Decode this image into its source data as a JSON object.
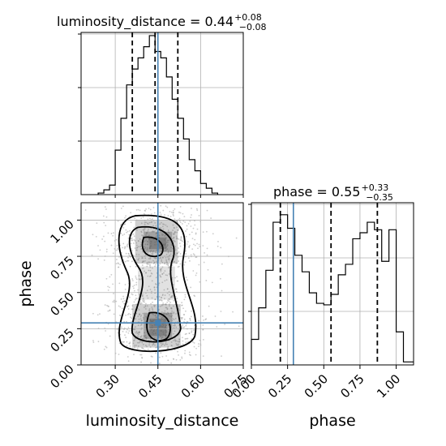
{
  "chart_data": {
    "type": "corner",
    "parameters": [
      "luminosity_distance",
      "phase"
    ],
    "truths": {
      "luminosity_distance": 0.45,
      "phase": 0.29
    },
    "panels": [
      {
        "name": "luminosity-distance-histogram",
        "type": "histogram",
        "title": {
          "main": "luminosity_distance = 0.44",
          "sup": "+0.08",
          "sub": "−0.08"
        },
        "xlim": [
          0.18,
          0.75
        ],
        "ylim": [
          0,
          1
        ],
        "quantile_lines": [
          0.36,
          0.44,
          0.52
        ],
        "truth": 0.45,
        "bin_edges": [
          0.24,
          0.26,
          0.28,
          0.3,
          0.32,
          0.34,
          0.36,
          0.38,
          0.4,
          0.42,
          0.44,
          0.46,
          0.48,
          0.5,
          0.52,
          0.54,
          0.56,
          0.58,
          0.6,
          0.62,
          0.64,
          0.66
        ],
        "counts": [
          0.01,
          0.03,
          0.06,
          0.28,
          0.48,
          0.69,
          0.79,
          0.86,
          0.93,
          1.0,
          0.9,
          0.86,
          0.74,
          0.6,
          0.48,
          0.35,
          0.22,
          0.15,
          0.07,
          0.04,
          0.01
        ]
      },
      {
        "name": "joint-density",
        "type": "contour",
        "xlim": [
          0.18,
          0.75
        ],
        "ylim": [
          0.0,
          1.12
        ],
        "xticks": [
          "0.30",
          "0.45",
          "0.60",
          "0.75"
        ],
        "xtick_values": [
          0.3,
          0.45,
          0.6,
          0.75
        ],
        "yticks": [
          "0.00",
          "0.25",
          "0.50",
          "0.75",
          "1.00"
        ],
        "ytick_values": [
          0.0,
          0.25,
          0.5,
          0.75,
          1.0
        ],
        "xlabel": "luminosity_distance",
        "ylabel": "phase",
        "truth": [
          0.45,
          0.29
        ]
      },
      {
        "name": "phase-histogram",
        "type": "histogram",
        "title": {
          "main": "phase = 0.55",
          "sup": "+0.33",
          "sub": "−0.35"
        },
        "xlim": [
          0.0,
          1.12
        ],
        "ylim": [
          0,
          1
        ],
        "xticks": [
          "0.00",
          "0.25",
          "0.50",
          "0.75",
          "1.00"
        ],
        "xtick_values": [
          0.0,
          0.25,
          0.5,
          0.75,
          1.0
        ],
        "xlabel": "phase",
        "quantile_lines": [
          0.2,
          0.55,
          0.87
        ],
        "truth": 0.29,
        "bin_edges": [
          0.0,
          0.05,
          0.1,
          0.15,
          0.2,
          0.25,
          0.3,
          0.35,
          0.4,
          0.45,
          0.5,
          0.55,
          0.6,
          0.65,
          0.7,
          0.75,
          0.8,
          0.85,
          0.9,
          0.95,
          1.0,
          1.05,
          1.12
        ],
        "counts": [
          0.17,
          0.38,
          0.63,
          0.95,
          1.0,
          0.91,
          0.73,
          0.62,
          0.48,
          0.41,
          0.4,
          0.47,
          0.6,
          0.67,
          0.84,
          0.88,
          0.95,
          0.9,
          0.69,
          0.9,
          0.22,
          0.02
        ]
      }
    ]
  }
}
